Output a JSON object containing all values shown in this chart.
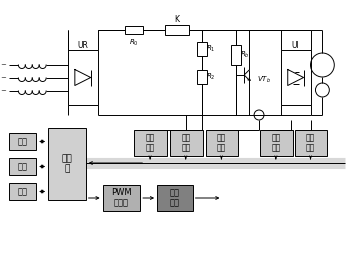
{
  "bg_color": "#ffffff",
  "lc": "#000000",
  "gray_light": "#c8c8c8",
  "gray_med": "#b0b0b0",
  "gray_dark": "#808080",
  "gray_mcu": "#d0d0d0",
  "fig_w": 3.63,
  "fig_h": 2.56,
  "dpi": 100,
  "labels": {
    "UR": "UR",
    "UI": "UI",
    "K": "K",
    "disp": "显示",
    "set": "设定",
    "iface": "接口",
    "mcu": "单片\n机",
    "volt": "电压\n检测",
    "pump": "泵升\n限制",
    "curr1": "电流\n检测",
    "temp": "温度\n检测",
    "curr2": "电流\n检测",
    "pwm": "PWM\n发生器",
    "drive": "驱动\n电路"
  }
}
